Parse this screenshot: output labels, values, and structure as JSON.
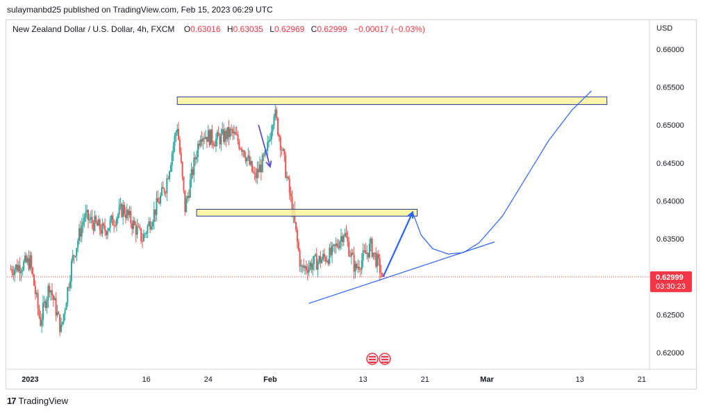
{
  "header": {
    "published": "sulaymanbd25 published on TradingView.com, Feb 15, 2023 06:29 UTC"
  },
  "legend": {
    "symbol": "New Zealand Dollar / U.S. Dollar, 4h, FXCM",
    "o_key": "O",
    "o_val": "0.63016",
    "h_key": "H",
    "h_val": "0.63035",
    "l_key": "L",
    "l_val": "0.62969",
    "c_key": "C",
    "c_val": "0.62999",
    "change": "−0.00017 (−0.03%)"
  },
  "colors": {
    "up": "#26a69a",
    "down": "#ef5350",
    "drawing": "#2962ff",
    "zone_fill": "#fff59d",
    "zone_stroke": "#1e3a8a",
    "price_tag": "#f23645"
  },
  "footer": {
    "brand": "TradingView"
  },
  "chart_data": {
    "type": "candlestick",
    "symbol": "NZDUSD",
    "timeframe": "4h",
    "currency": "USD",
    "y_axis_label": "USD",
    "y_ticks": [
      "0.66000",
      "0.65500",
      "0.65000",
      "0.64500",
      "0.64000",
      "0.63500",
      "0.63000",
      "0.62500",
      "0.62000"
    ],
    "ylim": [
      0.618,
      0.663
    ],
    "x_ticks": [
      {
        "label": "2023",
        "day": 0
      },
      {
        "label": "16",
        "day": 15
      },
      {
        "label": "24",
        "day": 23
      },
      {
        "label": "Feb",
        "day": 31
      },
      {
        "label": "13",
        "day": 43
      },
      {
        "label": "21",
        "day": 51
      },
      {
        "label": "Mar",
        "day": 59
      },
      {
        "label": "13",
        "day": 71
      },
      {
        "label": "21",
        "day": 79
      }
    ],
    "xlim_days": [
      -3,
      80
    ],
    "current_price": "0.62999",
    "countdown": "03:30:23",
    "candle_anchors": [
      {
        "day": -2.5,
        "p": 0.631
      },
      {
        "day": 0,
        "p": 0.632
      },
      {
        "day": 1.3,
        "p": 0.624
      },
      {
        "day": 2.5,
        "p": 0.629
      },
      {
        "day": 4,
        "p": 0.623
      },
      {
        "day": 5.4,
        "p": 0.632
      },
      {
        "day": 7,
        "p": 0.638
      },
      {
        "day": 9.5,
        "p": 0.636
      },
      {
        "day": 12,
        "p": 0.639
      },
      {
        "day": 14.5,
        "p": 0.635
      },
      {
        "day": 17.5,
        "p": 0.642
      },
      {
        "day": 19,
        "p": 0.65
      },
      {
        "day": 20,
        "p": 0.639
      },
      {
        "day": 22,
        "p": 0.649
      },
      {
        "day": 24,
        "p": 0.648
      },
      {
        "day": 26,
        "p": 0.649
      },
      {
        "day": 27.5,
        "p": 0.647
      },
      {
        "day": 29,
        "p": 0.643
      },
      {
        "day": 30.5,
        "p": 0.646
      },
      {
        "day": 31.5,
        "p": 0.652
      },
      {
        "day": 32.5,
        "p": 0.647
      },
      {
        "day": 34,
        "p": 0.638
      },
      {
        "day": 35,
        "p": 0.631
      },
      {
        "day": 37,
        "p": 0.632
      },
      {
        "day": 39,
        "p": 0.633
      },
      {
        "day": 40.5,
        "p": 0.636
      },
      {
        "day": 42,
        "p": 0.631
      },
      {
        "day": 44,
        "p": 0.634
      },
      {
        "day": 45.6,
        "p": 0.63
      }
    ],
    "zones": [
      {
        "day_start": 19.0,
        "day_end": 74.5,
        "p_top": 0.6537,
        "p_bottom": 0.6527
      },
      {
        "day_start": 21.5,
        "day_end": 50.0,
        "p_top": 0.6389,
        "p_bottom": 0.638
      }
    ],
    "trendline": {
      "day_start": 36.0,
      "p_start": 0.6265,
      "day_end": 60.0,
      "p_end": 0.6346
    },
    "arrows": [
      {
        "day_start": 45.6,
        "p_start": 0.63,
        "day_end": 49.4,
        "p_end": 0.6385
      },
      {
        "day_start": 29.5,
        "p_start": 0.65,
        "day_end": 31.0,
        "p_end": 0.6445
      }
    ],
    "projection_path": [
      {
        "day": 49.4,
        "p": 0.6385
      },
      {
        "day": 50.5,
        "p": 0.6355
      },
      {
        "day": 52,
        "p": 0.6337
      },
      {
        "day": 54,
        "p": 0.633
      },
      {
        "day": 56,
        "p": 0.6332
      },
      {
        "day": 58,
        "p": 0.6345
      },
      {
        "day": 61,
        "p": 0.638
      },
      {
        "day": 64,
        "p": 0.643
      },
      {
        "day": 67,
        "p": 0.648
      },
      {
        "day": 70,
        "p": 0.652
      },
      {
        "day": 72.5,
        "p": 0.6545
      }
    ]
  }
}
